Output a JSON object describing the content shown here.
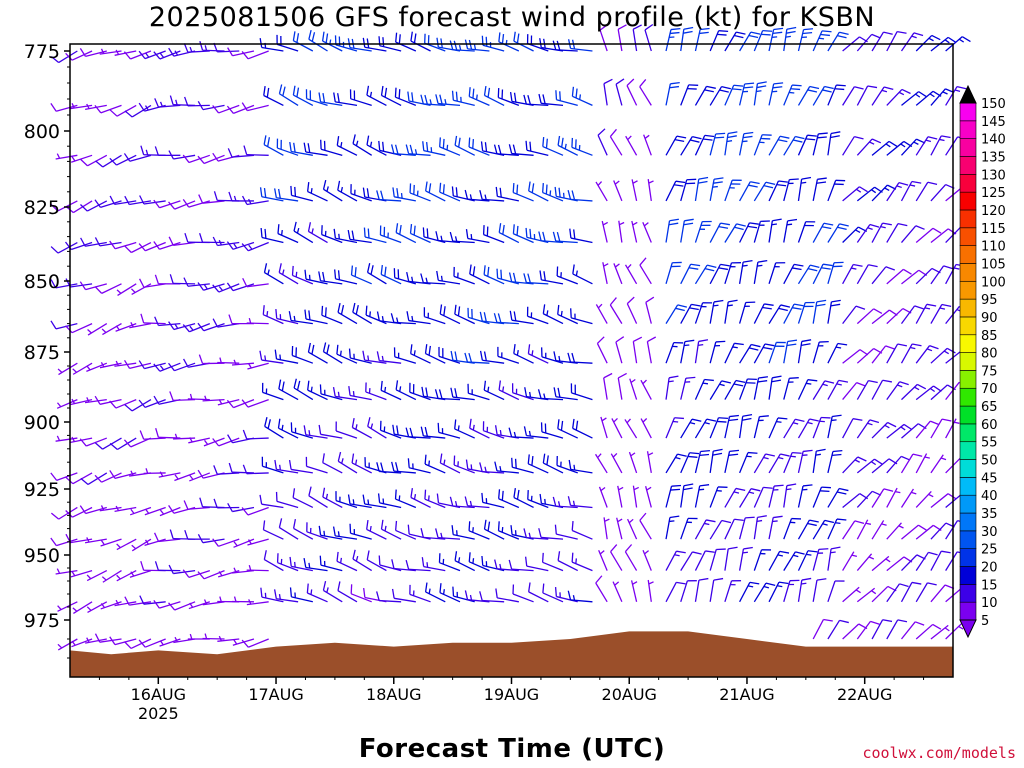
{
  "chart_data": {
    "type": "wind-barb-profile",
    "title": "2025081506 GFS forecast wind profile (kt) for KSBN",
    "xlabel": "Forecast Time (UTC)",
    "ylabel": "",
    "x_ticks": [
      "16AUG",
      "17AUG",
      "18AUG",
      "19AUG",
      "20AUG",
      "21AUG",
      "22AUG"
    ],
    "x_year_label": "2025",
    "y_ticks": [
      775,
      800,
      825,
      850,
      875,
      900,
      925,
      950,
      975
    ],
    "y_axis": "pressure (hPa), inverted",
    "ylim": [
      990,
      770
    ],
    "xlim_days": [
      15.25,
      22.75
    ],
    "levels": [
      775,
      792,
      808,
      823,
      837,
      851,
      865,
      879,
      892,
      906,
      919,
      932,
      944,
      956,
      968,
      980
    ],
    "time_step_hours": 3,
    "colorbar": {
      "ticks": [
        5,
        10,
        15,
        20,
        25,
        30,
        35,
        40,
        45,
        50,
        55,
        60,
        65,
        70,
        75,
        80,
        85,
        90,
        95,
        100,
        105,
        110,
        115,
        120,
        125,
        130,
        135,
        140,
        145,
        150
      ],
      "colors": [
        "#7b00f0",
        "#3c00e8",
        "#0000d8",
        "#0033e8",
        "#0055f0",
        "#0077f8",
        "#0099f8",
        "#00bbf8",
        "#00dcd8",
        "#00e8a8",
        "#00e868",
        "#00e028",
        "#30e800",
        "#88f000",
        "#d8f800",
        "#f8f800",
        "#f8d800",
        "#f8b800",
        "#f89800",
        "#f88800",
        "#f87000",
        "#f85000",
        "#f83000",
        "#f80000",
        "#f8003c",
        "#f80070",
        "#f800a0",
        "#f800c8",
        "#f800f0"
      ]
    },
    "wind_regimes": [
      {
        "t_start": 15.25,
        "t_end": 16.0,
        "dir_deg": 250,
        "speed_kt": 10
      },
      {
        "t_start": 16.0,
        "t_end": 17.0,
        "dir_deg": 260,
        "speed_kt": 12
      },
      {
        "t_start": 17.0,
        "t_end": 18.0,
        "dir_deg": 290,
        "speed_kt": 20
      },
      {
        "t_start": 18.0,
        "t_end": 19.8,
        "dir_deg": 285,
        "speed_kt": 22
      },
      {
        "t_start": 19.8,
        "t_end": 20.3,
        "dir_deg": 340,
        "speed_kt": 8
      },
      {
        "t_start": 20.3,
        "t_end": 21.8,
        "dir_deg": 20,
        "speed_kt": 22
      },
      {
        "t_start": 21.8,
        "t_end": 22.75,
        "dir_deg": 40,
        "speed_kt": 14
      }
    ],
    "terrain_pressure_hPa": [
      {
        "t": 15.25,
        "p": 983
      },
      {
        "t": 15.6,
        "p": 984
      },
      {
        "t": 16.0,
        "p": 983
      },
      {
        "t": 16.5,
        "p": 984
      },
      {
        "t": 17.0,
        "p": 982
      },
      {
        "t": 17.5,
        "p": 981
      },
      {
        "t": 18.0,
        "p": 982
      },
      {
        "t": 18.5,
        "p": 981
      },
      {
        "t": 19.0,
        "p": 981
      },
      {
        "t": 19.5,
        "p": 980
      },
      {
        "t": 20.0,
        "p": 978
      },
      {
        "t": 20.5,
        "p": 978
      },
      {
        "t": 21.0,
        "p": 980
      },
      {
        "t": 21.5,
        "p": 982
      },
      {
        "t": 22.0,
        "p": 982
      },
      {
        "t": 22.75,
        "p": 982
      }
    ],
    "terrain_color": "#9b4f2a"
  },
  "credit": "coolwx.com/models"
}
